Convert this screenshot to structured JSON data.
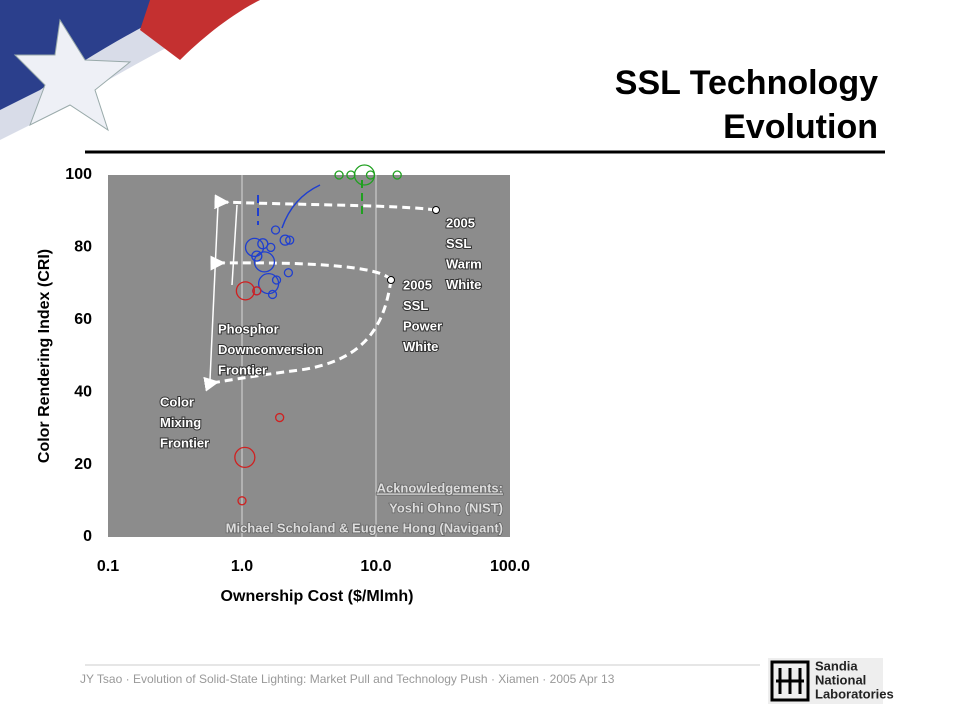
{
  "chart_data": {
    "type": "scatter",
    "title_lines": [
      "SSL Technology",
      "Evolution"
    ],
    "x_label": "Ownership Cost ($/Mlmh)",
    "y_label": "Color Rendering Index (CRI)",
    "x_log": true,
    "xlim": [
      0.1,
      100
    ],
    "xticks": [
      0.1,
      {
        "value": 1,
        "label": "1.0"
      },
      {
        "value": 10,
        "label": "10.0"
      },
      {
        "value": 100,
        "label": "100.0"
      }
    ],
    "ylim": [
      0,
      100
    ],
    "yticks": [
      0,
      20,
      40,
      60,
      80,
      100
    ],
    "grid_x": true,
    "series": [
      {
        "color": "#1f3fd0",
        "x": [
          1.78,
          1.24,
          1.43,
          1.64,
          2.1,
          2.27,
          1.29,
          1.47,
          1.58,
          1.81,
          1.69,
          2.22,
          1.29
        ],
        "values": [
          84.8,
          80,
          81,
          80,
          82,
          82,
          77.6,
          76,
          70,
          71,
          67,
          73,
          68
        ],
        "sizes": [
          4,
          9,
          5,
          4,
          5,
          4,
          5,
          10,
          10,
          4,
          4,
          4,
          4
        ]
      },
      {
        "color": "#d02020",
        "x": [
          1.06,
          1.29,
          1.91,
          1.05,
          1.0
        ],
        "values": [
          68,
          68,
          33,
          22,
          10
        ],
        "sizes": [
          9,
          4,
          4,
          10,
          4
        ]
      },
      {
        "color": "#20a020",
        "x": [
          5.3,
          6.5,
          8.2,
          9.1,
          14.4
        ],
        "values": [
          100,
          100,
          100,
          100,
          100
        ],
        "sizes": [
          4,
          4,
          10,
          4,
          4
        ]
      }
    ],
    "annotations": [
      [
        "2005",
        "SSL",
        "Warm",
        "White"
      ],
      [
        "2005",
        "SSL",
        "Power",
        "White"
      ],
      [
        "Phosphor",
        "Downconversion",
        "Frontier"
      ],
      [
        "Color",
        "Mixing",
        "Frontier"
      ]
    ],
    "acknowledgements": [
      "Acknowledgements:",
      "Yoshi Ohno (NIST)",
      "Michael Scholand & Eugene Hong (Navigant)"
    ]
  },
  "footer": [
    "JY Tsao",
    "Evolution of Solid-State Lighting: Market Pull and Technology Push",
    "Xiamen",
    "2005 Apr 13"
  ],
  "logo": [
    "Sandia",
    "National",
    "Laboratories"
  ]
}
